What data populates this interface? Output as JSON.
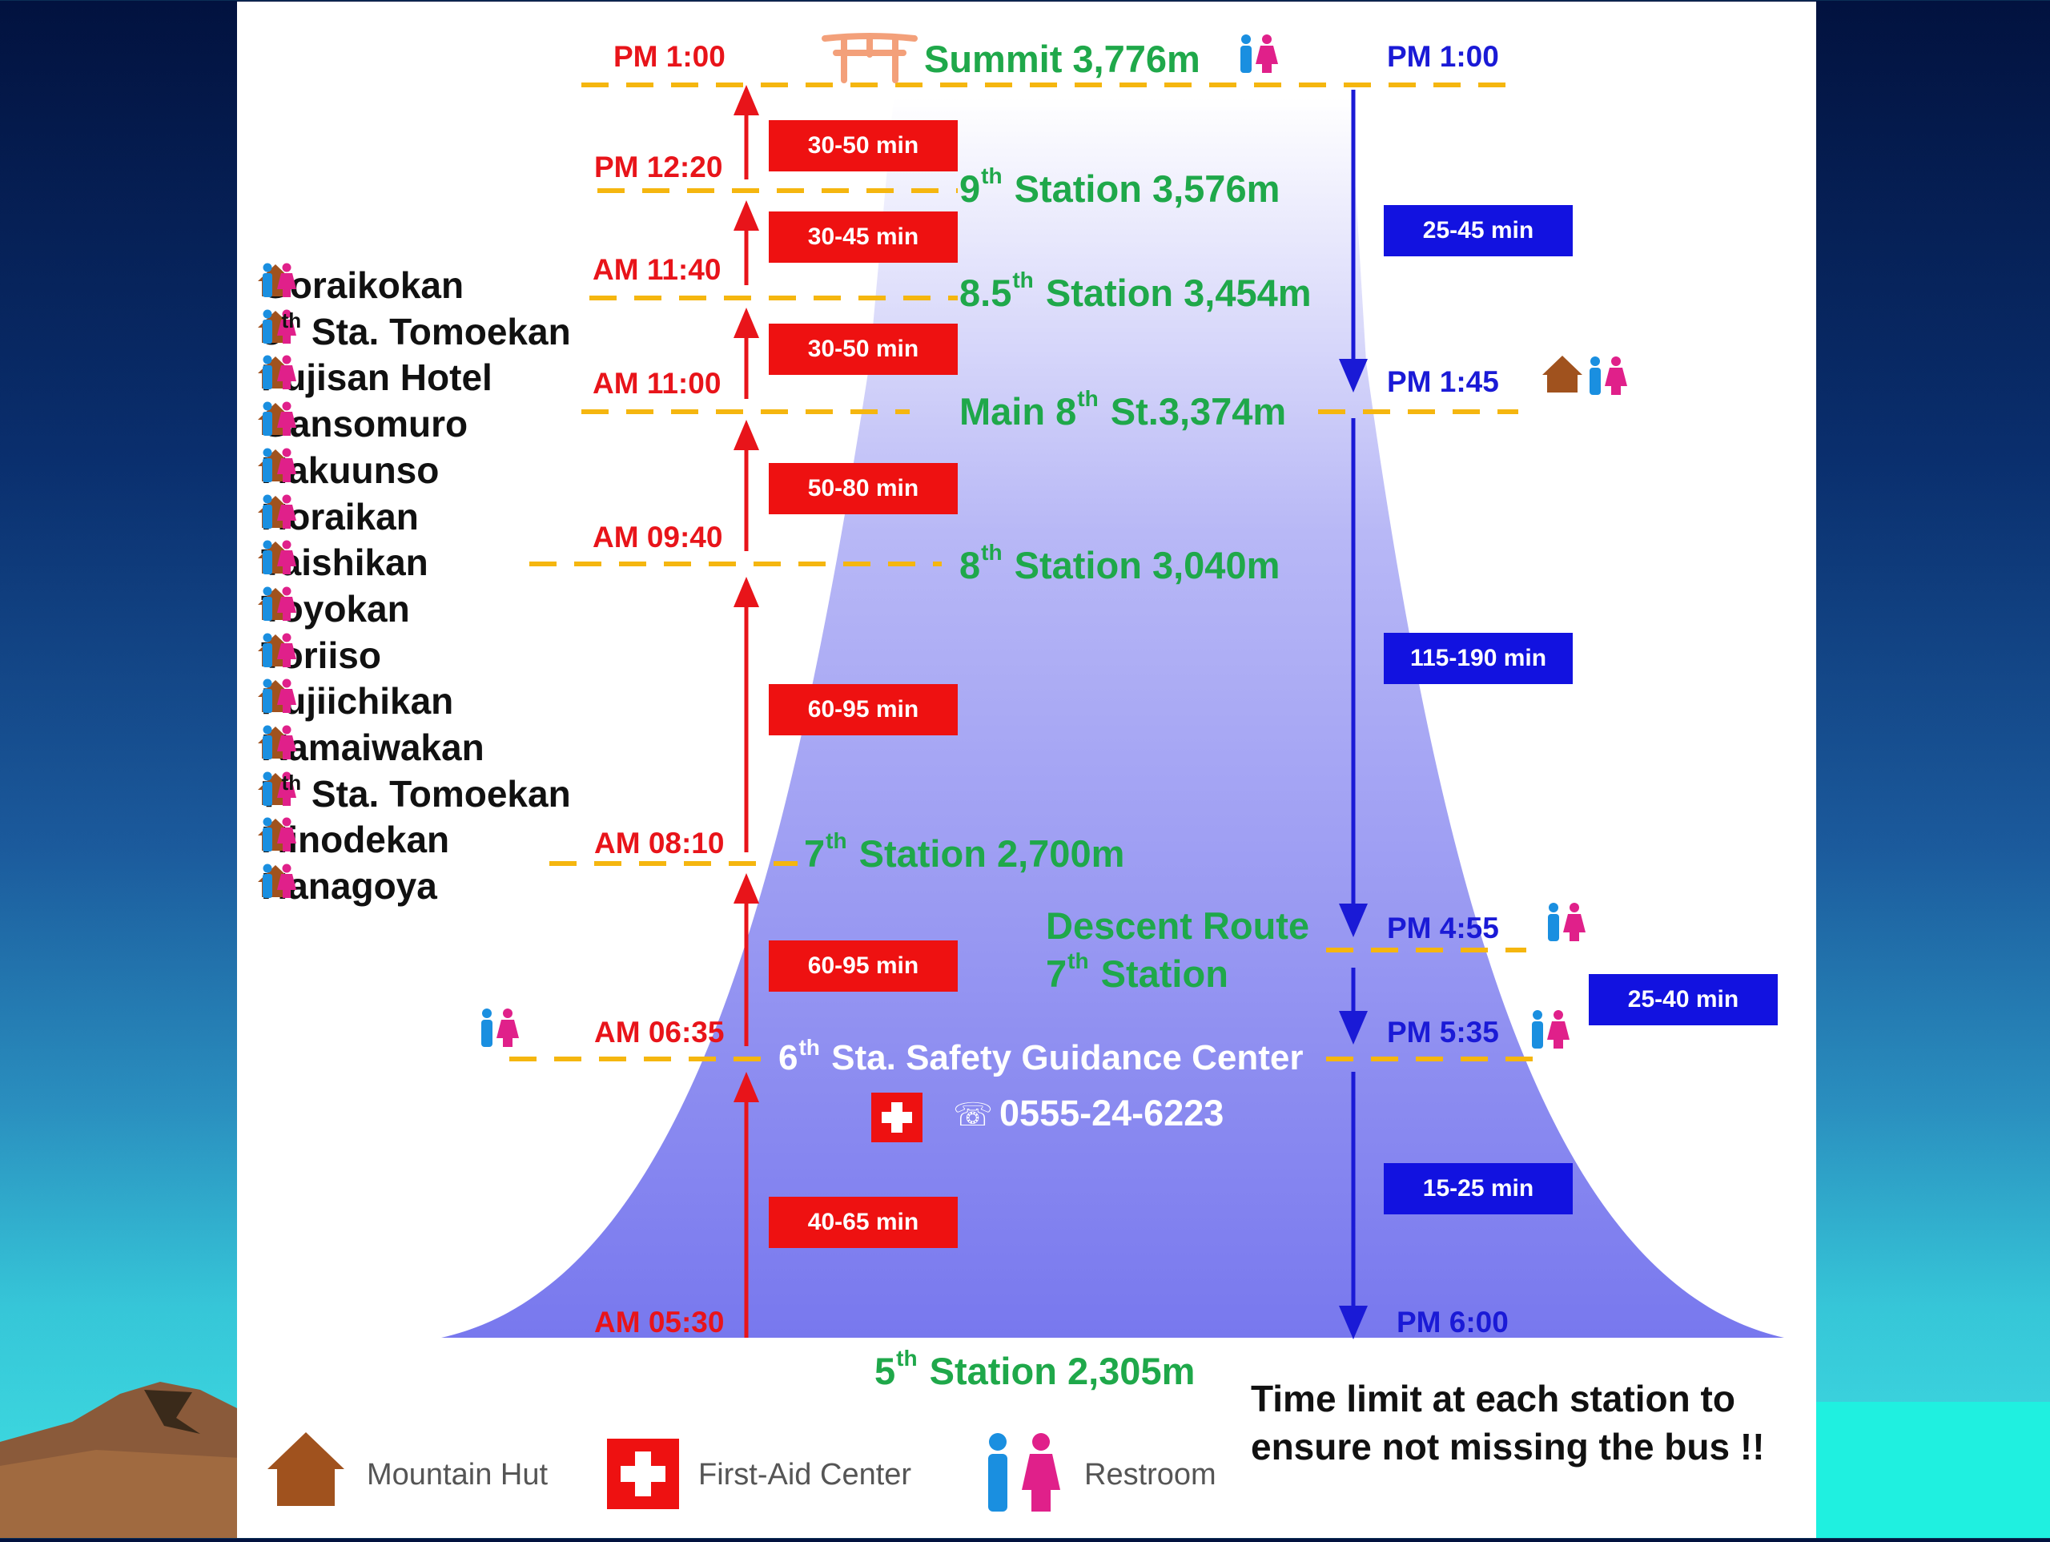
{
  "colors": {
    "uphill": "#e8141a",
    "downhill": "#1a1ad6",
    "station": "#1fa84a",
    "dash": "#f5b60f",
    "mountain": "#7070ee"
  },
  "summit": {
    "label": "Summit 3,776m",
    "time_up": "PM 1:00",
    "time_down": "PM 1:00",
    "icon": "torii-gate-icon"
  },
  "stations": {
    "s9": {
      "pre": "9",
      "sup": "th",
      "post": " Station 3,576m"
    },
    "s85": {
      "pre": "8.5",
      "sup": "th",
      "post": " Station 3,454m"
    },
    "main8": {
      "pre": "Main 8",
      "sup": "th",
      "post": " St.3,374m"
    },
    "s8": {
      "pre": "8",
      "sup": "th",
      "post": " Station 3,040m"
    },
    "s7": {
      "pre": "7",
      "sup": "th",
      "post": " Station 2,700m"
    },
    "descent_line1": "Descent Route",
    "descent7": {
      "pre": "7",
      "sup": "th",
      "post": " Station"
    },
    "s6": {
      "pre": "6",
      "sup": "th",
      "post": " Sta. Safety Guidance Center"
    },
    "phone": "0555-24-6223",
    "s5": {
      "pre": "5",
      "sup": "th",
      "post": " Station 2,305m"
    }
  },
  "uphill_times": [
    "PM 12:20",
    "AM 11:40",
    "AM 11:00",
    "AM 09:40",
    "AM 08:10",
    "AM 06:35",
    "AM 05:30"
  ],
  "uphill_durations": [
    "30-50 min",
    "30-45 min",
    "30-50 min",
    "50-80 min",
    "60-95 min",
    "60-95 min",
    "40-65 min"
  ],
  "downhill_times": [
    "PM 1:45",
    "PM 4:55",
    "PM 5:35",
    "PM 6:00"
  ],
  "downhill_durations": [
    "25-45 min",
    "115-190 min",
    "25-40 min",
    "15-25 min"
  ],
  "huts": [
    {
      "pre": "Goraikokan",
      "sup": "",
      "post": ""
    },
    {
      "pre": "8",
      "sup": "th",
      "post": " Sta. Tomoekan"
    },
    {
      "pre": "Fujisan Hotel",
      "sup": "",
      "post": ""
    },
    {
      "pre": "Gansomuro",
      "sup": "",
      "post": ""
    },
    {
      "pre": "Hakuunso",
      "sup": "",
      "post": ""
    },
    {
      "pre": "Horaikan",
      "sup": "",
      "post": ""
    },
    {
      "pre": "Taishikan",
      "sup": "",
      "post": ""
    },
    {
      "pre": "Toyokan",
      "sup": "",
      "post": ""
    },
    {
      "pre": "Toriiso",
      "sup": "",
      "post": ""
    },
    {
      "pre": "Fujiichikan",
      "sup": "",
      "post": ""
    },
    {
      "pre": "Kamaiwakan",
      "sup": "",
      "post": ""
    },
    {
      "pre": "7",
      "sup": "th",
      "post": " Sta. Tomoekan"
    },
    {
      "pre": "Hinodekan",
      "sup": "",
      "post": ""
    },
    {
      "pre": "Hanagoya",
      "sup": "",
      "post": ""
    }
  ],
  "legend": {
    "hut": "Mountain Hut",
    "first_aid": "First-Aid Center",
    "restroom": "Restroom"
  },
  "note": "Time limit at each station to ensure not missing the bus !!"
}
